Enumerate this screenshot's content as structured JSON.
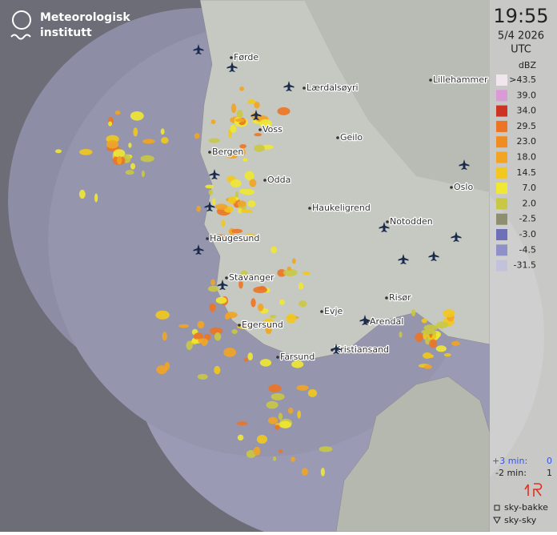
{
  "header": {
    "logo_line1": "Meteorologisk",
    "logo_line2": "institutt"
  },
  "panel": {
    "time": "19:55",
    "date": "5/4 2026",
    "timezone": "UTC",
    "unit": "dBZ",
    "legend": [
      {
        "label": ">43.5",
        "color": "#f1e6ee"
      },
      {
        "label": "39.0",
        "color": "#d99ad6"
      },
      {
        "label": "34.0",
        "color": "#cc3322"
      },
      {
        "label": "29.5",
        "color": "#ec7424"
      },
      {
        "label": "23.0",
        "color": "#f08c20"
      },
      {
        "label": "18.0",
        "color": "#f2a422"
      },
      {
        "label": "14.5",
        "color": "#f2c81c"
      },
      {
        "label": "7.0",
        "color": "#f0e832"
      },
      {
        "label": "2.0",
        "color": "#c9c844"
      },
      {
        "label": "-2.5",
        "color": "#8e8e70"
      },
      {
        "label": "-3.0",
        "color": "#6f6fb8"
      },
      {
        "label": "-4.5",
        "color": "#9090c8"
      },
      {
        "label": "-31.5",
        "color": "#c2c2dc"
      }
    ],
    "lightning": {
      "future_label": "+3 min:",
      "future_count": "0",
      "past_label": "-2 min:",
      "past_count": "1",
      "ground_label": "sky-bakke",
      "cloud_label": "sky-sky"
    }
  },
  "map": {
    "places": [
      "Førde",
      "Lærdalsøyri",
      "Lillehammer",
      "Voss",
      "Geilo",
      "Bergen",
      "Odda",
      "Oslo",
      "Haukeligrend",
      "Notodden",
      "Haugesund",
      "Stavanger",
      "Risør",
      "Evje",
      "Arendal",
      "Egersund",
      "Kristiansand",
      "Farsund"
    ]
  }
}
